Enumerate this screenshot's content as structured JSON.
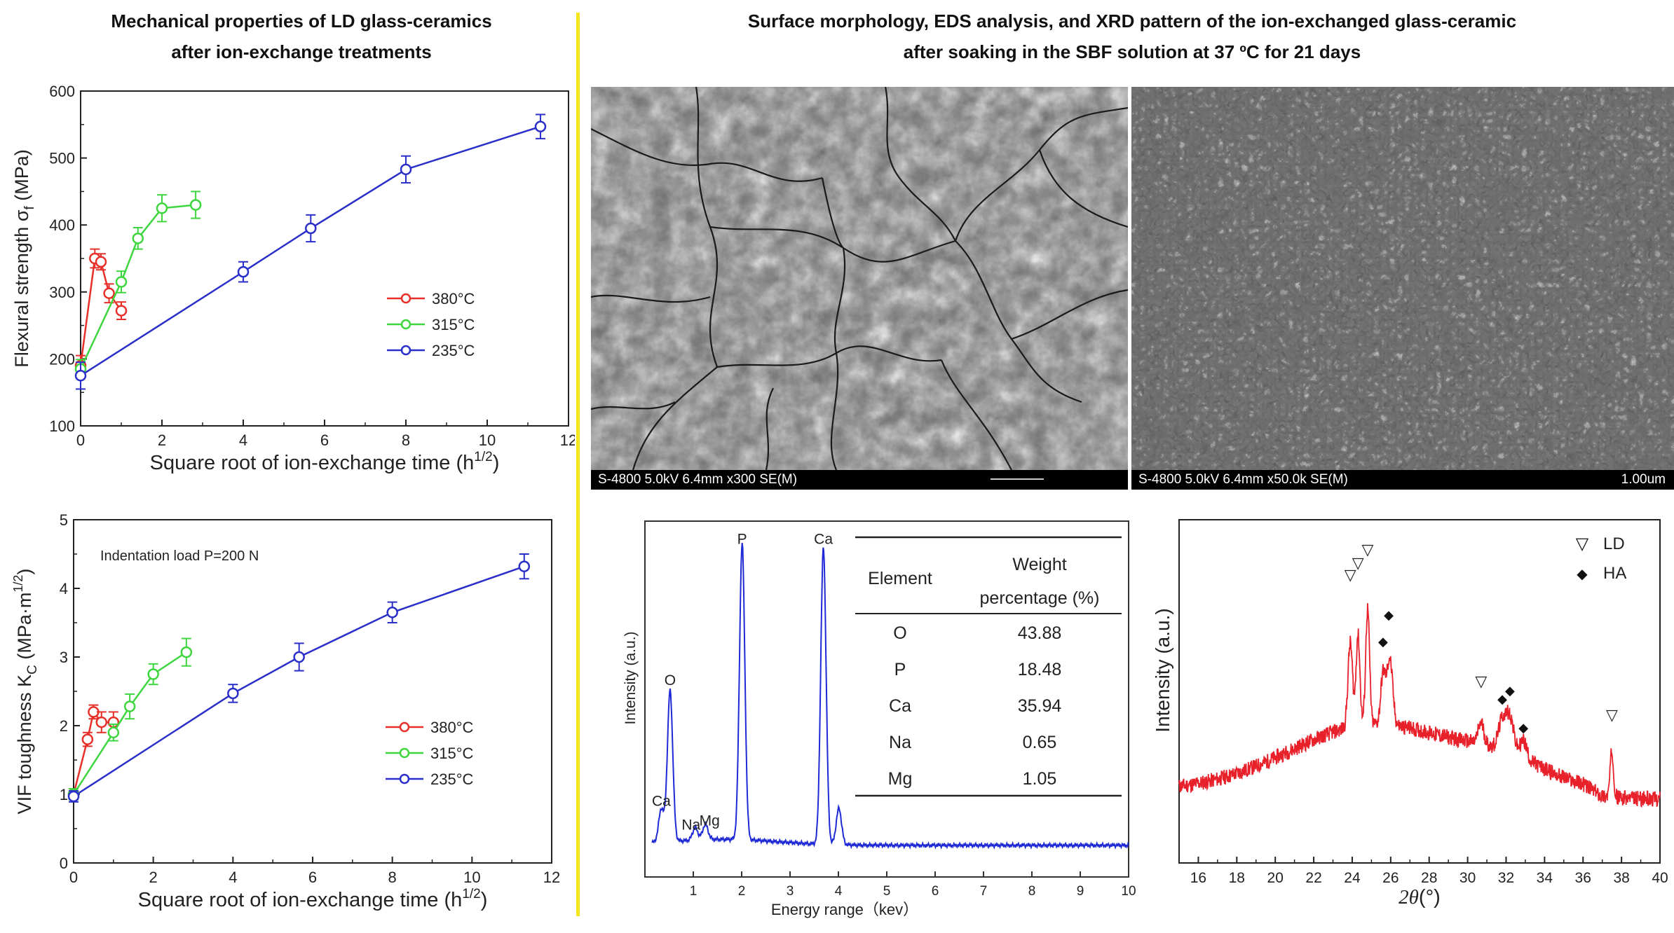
{
  "headings": {
    "left_line1": "Mechanical properties of LD glass-ceramics",
    "left_line2": "after ion-exchange treatments",
    "right_line1": "Surface morphology, EDS analysis, and XRD pattern of the ion-exchanged glass-ceramic",
    "right_line2": "after soaking in the SBF solution at 37 ºC for 21 days"
  },
  "colors": {
    "red": "#e8302a",
    "green": "#3ed63e",
    "blue": "#2b2fc9",
    "edsBlue": "#1f2ad6",
    "xrdRed": "#e8202a",
    "divider": "#f5e51d"
  },
  "chart_data": [
    {
      "type": "line",
      "xlabel": "Square root of ion-exchange time (h",
      "xlabel_sup": "1/2",
      "xlabel_end": ")",
      "ylabel": "Flexural strength σ",
      "ylabel_sub": "f",
      "ylabel_end": " (MPa)",
      "xlim": [
        0,
        12
      ],
      "ylim": [
        100,
        600
      ],
      "xticks": [
        "0",
        "2",
        "4",
        "6",
        "8",
        "10",
        "12"
      ],
      "yticks": [
        "100",
        "200",
        "300",
        "400",
        "500",
        "600"
      ],
      "legend_position": "center-right",
      "series": [
        {
          "name": "380°C",
          "color": "#e8302a",
          "x": [
            0,
            0.35,
            0.5,
            0.7,
            1.0
          ],
          "y": [
            190,
            350,
            345,
            298,
            272
          ],
          "err": [
            15,
            14,
            12,
            14,
            13
          ]
        },
        {
          "name": "315°C",
          "color": "#3ed63e",
          "x": [
            0,
            1.0,
            1.41,
            2.0,
            2.83
          ],
          "y": [
            185,
            315,
            380,
            425,
            430
          ],
          "err": [
            14,
            16,
            16,
            20,
            20
          ]
        },
        {
          "name": "235°C",
          "color": "#2b2fc9",
          "x": [
            0,
            4.0,
            5.66,
            8.0,
            11.31
          ],
          "y": [
            175,
            330,
            395,
            483,
            547
          ],
          "err": [
            20,
            15,
            20,
            20,
            18
          ]
        }
      ]
    },
    {
      "type": "line",
      "annotation": "Indentation load P=200 N",
      "xlabel": "Square root of ion-exchange time (h",
      "xlabel_sup": "1/2",
      "xlabel_end": ")",
      "ylabel": "VIF toughness K",
      "ylabel_sub": "C",
      "ylabel_end": " (MPa·m",
      "ylabel_sup": "1/2",
      "ylabel_close": ")",
      "xlim": [
        0,
        12
      ],
      "ylim": [
        0,
        5
      ],
      "xticks": [
        "0",
        "2",
        "4",
        "6",
        "8",
        "10",
        "12"
      ],
      "yticks": [
        "0",
        "1",
        "2",
        "3",
        "4",
        "5"
      ],
      "legend_position": "bottom-right",
      "series": [
        {
          "name": "380°C",
          "color": "#e8302a",
          "x": [
            0,
            0.35,
            0.5,
            0.7,
            1.0
          ],
          "y": [
            1.0,
            1.8,
            2.2,
            2.05,
            2.05
          ],
          "err": [
            0.08,
            0.1,
            0.1,
            0.15,
            0.15
          ]
        },
        {
          "name": "315°C",
          "color": "#3ed63e",
          "x": [
            0,
            1.0,
            1.41,
            2.0,
            2.83
          ],
          "y": [
            1.0,
            1.9,
            2.28,
            2.75,
            3.07
          ],
          "err": [
            0.08,
            0.12,
            0.18,
            0.15,
            0.2
          ]
        },
        {
          "name": "235°C",
          "color": "#2b2fc9",
          "x": [
            0,
            4.0,
            5.66,
            8.0,
            11.31
          ],
          "y": [
            0.97,
            2.47,
            3.0,
            3.65,
            4.32
          ],
          "err": [
            0.08,
            0.13,
            0.2,
            0.15,
            0.18
          ]
        }
      ]
    },
    {
      "type": "line",
      "xlabel": "Energy range（kev）",
      "ylabel": "Intensity (a.u.)",
      "xlim": [
        0,
        10
      ],
      "xticks": [
        "1",
        "2",
        "3",
        "4",
        "5",
        "6",
        "7",
        "8",
        "9",
        "10"
      ],
      "peaks": [
        {
          "label": "Ca",
          "x": 0.34,
          "height": 0.11
        },
        {
          "label": "O",
          "x": 0.52,
          "height": 0.5
        },
        {
          "label": "Na",
          "x": 1.04,
          "height": 0.04
        },
        {
          "label": "Mg",
          "x": 1.25,
          "height": 0.05
        },
        {
          "label": "P",
          "x": 2.01,
          "height": 0.98
        },
        {
          "label": "Ca",
          "x": 3.69,
          "height": 0.98
        },
        {
          "label": "",
          "x": 4.01,
          "height": 0.12
        }
      ],
      "table": {
        "col1": "Element",
        "col2_line1": "Weight",
        "col2_line2": "percentage (%)",
        "rows": [
          {
            "element": "O",
            "value": "43.88"
          },
          {
            "element": "P",
            "value": "18.48"
          },
          {
            "element": "Ca",
            "value": "35.94"
          },
          {
            "element": "Na",
            "value": "0.65"
          },
          {
            "element": "Mg",
            "value": "1.05"
          }
        ]
      }
    },
    {
      "type": "line",
      "xlabel_theta": "2θ",
      "xlabel_unit": "(°)",
      "ylabel": "Intensity (a.u.)",
      "xlim": [
        15,
        40
      ],
      "xticks": [
        "16",
        "18",
        "20",
        "22",
        "24",
        "26",
        "28",
        "30",
        "32",
        "34",
        "36",
        "38",
        "40"
      ],
      "legend": [
        {
          "symbol": "▽",
          "label": "LD"
        },
        {
          "symbol": "◆",
          "label": "HA"
        }
      ],
      "ld_markers": [
        23.9,
        24.3,
        24.8,
        30.7,
        37.5
      ],
      "ha_markers": [
        25.6,
        25.9,
        31.8,
        32.2,
        32.9
      ]
    }
  ],
  "sem_images": [
    {
      "caption": "S-4800 5.0kV 6.4mm x300 SE(M)",
      "scale": ""
    },
    {
      "caption": "S-4800 5.0kV 6.4mm x50.0k SE(M)",
      "scale": "1.00um"
    }
  ]
}
